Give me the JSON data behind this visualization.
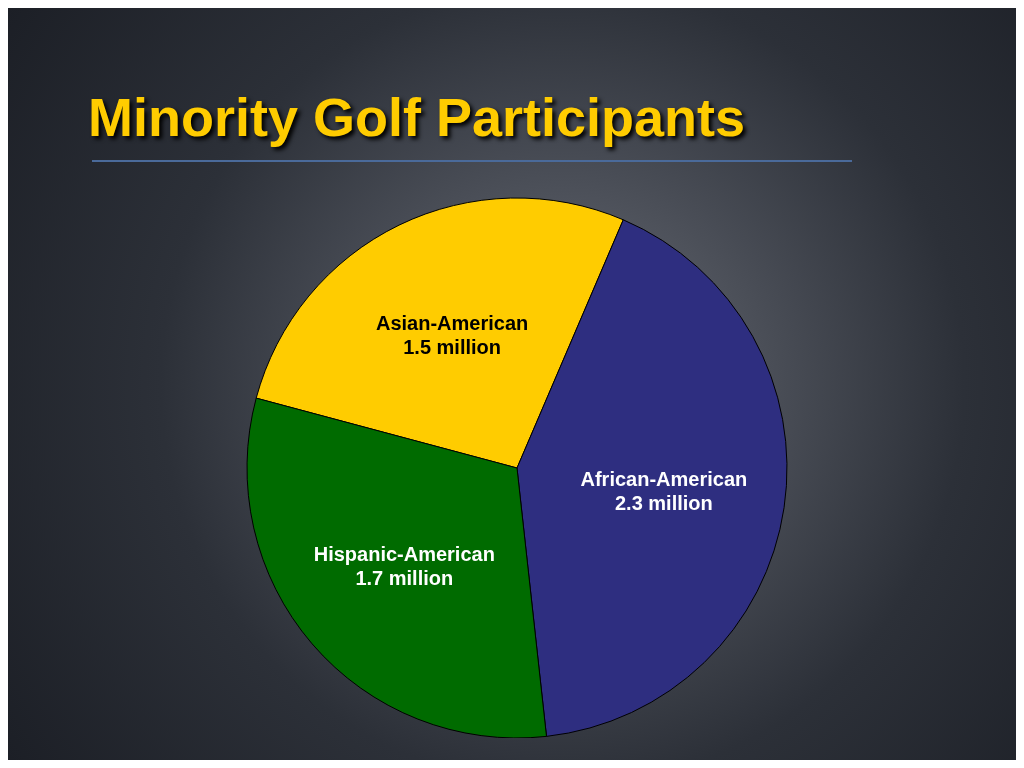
{
  "chart_data": {
    "type": "pie",
    "title": "Minority Golf Participants",
    "categories": [
      "Asian-American",
      "African-American",
      "Hispanic-American"
    ],
    "values": [
      1.5,
      2.3,
      1.7
    ],
    "value_labels": [
      "1.5 million",
      "2.3 million",
      "1.7 million"
    ],
    "colors": [
      "#ffcc00",
      "#2e2e80",
      "#006b00"
    ]
  }
}
